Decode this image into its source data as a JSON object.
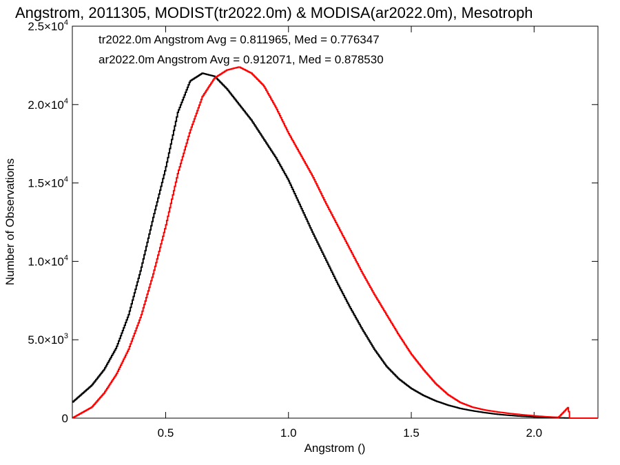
{
  "chart_data": {
    "type": "line",
    "title": "Angstrom, 2011305, MODIST(tr2022.0m) & MODISA(ar2022.0m), Mesotroph",
    "xlabel": "Angstrom ()",
    "ylabel": "Number of Observations",
    "xlim": [
      0.12,
      2.26
    ],
    "ylim": [
      0,
      25000
    ],
    "grid": false,
    "step": true,
    "x_ticks": [
      0.5,
      1.0,
      1.5,
      2.0
    ],
    "x_tick_labels": [
      "0.5",
      "1.0",
      "1.5",
      "2.0"
    ],
    "y_ticks": [
      0,
      5000,
      10000,
      15000,
      20000,
      25000
    ],
    "y_tick_labels": [
      {
        "mantissa": "0",
        "exp": ""
      },
      {
        "mantissa": "5.0×10",
        "exp": "3"
      },
      {
        "mantissa": "1.0×10",
        "exp": "4"
      },
      {
        "mantissa": "1.5×10",
        "exp": "4"
      },
      {
        "mantissa": "2.0×10",
        "exp": "4"
      },
      {
        "mantissa": "2.5×10",
        "exp": "4"
      }
    ],
    "annotations": [
      {
        "text": "tr2022.0m Angstrom Avg = 0.811965, Med = 0.776347",
        "color": "#000000"
      },
      {
        "text": "ar2022.0m Angstrom Avg = 0.912071, Med = 0.878530",
        "color": "#ff0000"
      }
    ],
    "series": [
      {
        "color": "#000000",
        "x": [
          0.12,
          0.2,
          0.25,
          0.3,
          0.35,
          0.4,
          0.45,
          0.5,
          0.55,
          0.6,
          0.65,
          0.7,
          0.75,
          0.8,
          0.85,
          0.9,
          0.95,
          1.0,
          1.05,
          1.1,
          1.15,
          1.2,
          1.25,
          1.3,
          1.35,
          1.4,
          1.45,
          1.5,
          1.55,
          1.6,
          1.65,
          1.7,
          1.75,
          1.8,
          1.85,
          1.9,
          1.95,
          2.0,
          2.05,
          2.1,
          2.14
        ],
        "values": [
          1000,
          2100,
          3100,
          4500,
          6600,
          9500,
          12800,
          15900,
          19500,
          21500,
          22000,
          21800,
          21000,
          20000,
          19000,
          17800,
          16600,
          15200,
          13500,
          11800,
          10200,
          8600,
          7100,
          5700,
          4400,
          3300,
          2500,
          1900,
          1450,
          1100,
          830,
          620,
          470,
          350,
          250,
          180,
          120,
          80,
          40,
          20,
          10
        ]
      },
      {
        "color": "#ff0000",
        "x": [
          0.12,
          0.2,
          0.25,
          0.3,
          0.35,
          0.4,
          0.45,
          0.5,
          0.55,
          0.6,
          0.65,
          0.7,
          0.75,
          0.8,
          0.85,
          0.9,
          0.95,
          1.0,
          1.05,
          1.1,
          1.15,
          1.2,
          1.25,
          1.3,
          1.35,
          1.4,
          1.45,
          1.5,
          1.55,
          1.6,
          1.65,
          1.7,
          1.75,
          1.8,
          1.85,
          1.9,
          1.95,
          2.0,
          2.05,
          2.1,
          2.14,
          2.145,
          2.15,
          2.26
        ],
        "values": [
          0,
          700,
          1600,
          2800,
          4400,
          6500,
          9200,
          12200,
          15600,
          18300,
          20500,
          21700,
          22200,
          22400,
          22000,
          21200,
          19800,
          18200,
          16800,
          15400,
          13800,
          12300,
          10800,
          9300,
          7900,
          6600,
          5300,
          4100,
          3100,
          2200,
          1500,
          1000,
          700,
          520,
          400,
          300,
          220,
          150,
          90,
          50,
          700,
          0,
          0,
          0
        ]
      }
    ]
  }
}
